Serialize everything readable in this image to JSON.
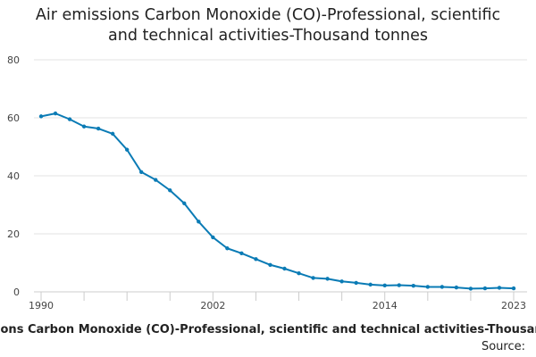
{
  "chart_data": {
    "type": "line",
    "title_lines": [
      "Air emissions Carbon Monoxide (CO)-Professional, scientific",
      "and technical activities-Thousand tonnes"
    ],
    "caption": "Air emissions Carbon Monoxide (CO)-Professional, scientific and technical activities-Thousand tonnes",
    "source_label": "Source:",
    "xlabel": "",
    "ylabel": "",
    "xlim": [
      1990,
      2023
    ],
    "ylim": [
      0,
      80
    ],
    "y_ticks": [
      0,
      20,
      40,
      60,
      80
    ],
    "x_tick_labels": [
      "1990",
      "2002",
      "2014",
      "2023"
    ],
    "x_tick_label_years": [
      1990,
      2002,
      2014,
      2023
    ],
    "x_minor_tick_years": [
      1990,
      1993,
      1996,
      1999,
      2002,
      2005,
      2008,
      2011,
      2014,
      2017,
      2020,
      2023
    ],
    "grid": true,
    "series": [
      {
        "name": "Air emissions Carbon Monoxide (CO)-Professional, scientific and technical activities-Thousand tonnes",
        "color": "#0a7bb5",
        "x": [
          1990,
          1991,
          1992,
          1993,
          1994,
          1995,
          1996,
          1997,
          1998,
          1999,
          2000,
          2001,
          2002,
          2003,
          2004,
          2005,
          2006,
          2007,
          2008,
          2009,
          2010,
          2011,
          2012,
          2013,
          2014,
          2015,
          2016,
          2017,
          2018,
          2019,
          2020,
          2021,
          2022,
          2023
        ],
        "values": [
          60.5,
          61.5,
          59.5,
          57.0,
          56.3,
          54.5,
          49.0,
          41.3,
          38.6,
          35.0,
          30.5,
          24.2,
          18.8,
          15.0,
          13.3,
          11.3,
          9.3,
          8.0,
          6.4,
          4.8,
          4.5,
          3.6,
          3.1,
          2.5,
          2.2,
          2.3,
          2.1,
          1.7,
          1.7,
          1.5,
          1.1,
          1.2,
          1.4,
          1.2
        ]
      }
    ]
  }
}
